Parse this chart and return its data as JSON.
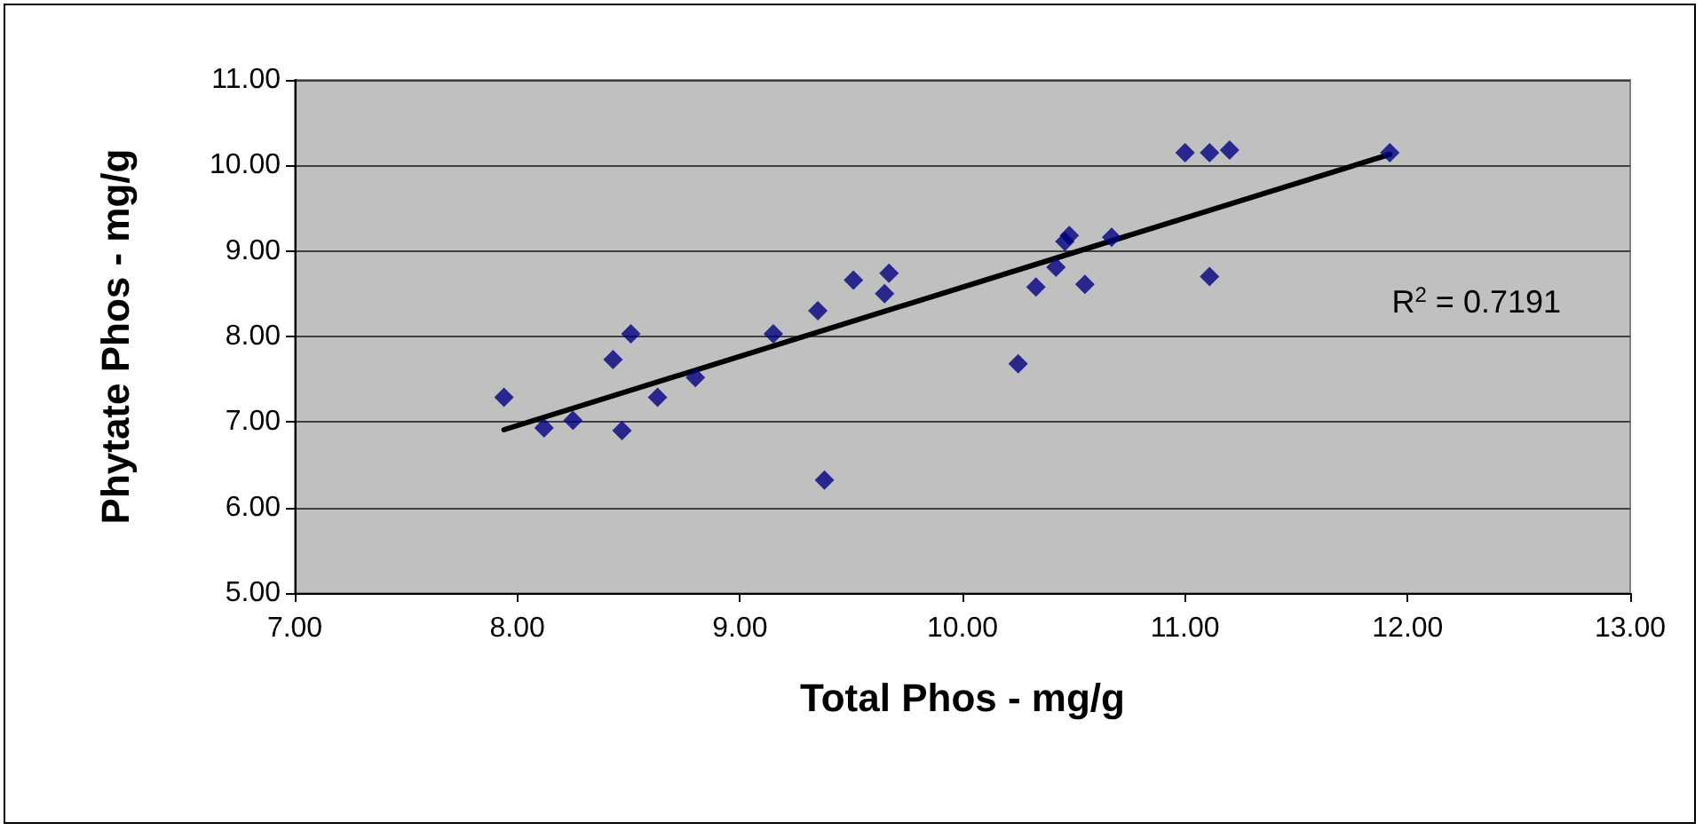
{
  "chart_data": {
    "type": "scatter",
    "xlabel": "Total Phos - mg/g",
    "ylabel": "Phytate Phos - mg/g",
    "xlim": [
      7,
      13
    ],
    "xticks": [
      {
        "value": 7,
        "label": "7.00"
      },
      {
        "value": 8,
        "label": "8.00"
      },
      {
        "value": 9,
        "label": "9.00"
      },
      {
        "value": 10,
        "label": "10.00"
      },
      {
        "value": 11,
        "label": "11.00"
      },
      {
        "value": 12,
        "label": "12.00"
      },
      {
        "value": 13,
        "label": "13.00"
      }
    ],
    "ylim": [
      5,
      11
    ],
    "yticks": [
      {
        "value": 5,
        "label": "5.00"
      },
      {
        "value": 6,
        "label": "6.00"
      },
      {
        "value": 7,
        "label": "7.00"
      },
      {
        "value": 8,
        "label": "8.00"
      },
      {
        "value": 9,
        "label": "9.00"
      },
      {
        "value": 10,
        "label": "10.00"
      },
      {
        "value": 11,
        "label": "11.00"
      }
    ],
    "grid": "y",
    "marker": "diamond",
    "annotations": [
      "R$^{2}$ = 0.7191"
    ],
    "series": [
      {
        "color": "#000080",
        "x": [
          7.94,
          8.12,
          8.25,
          8.43,
          8.47,
          8.51,
          8.63,
          8.8,
          9.15,
          9.35,
          9.38,
          9.51,
          9.65,
          9.67,
          10.25,
          10.33,
          10.42,
          10.46,
          10.48,
          10.55,
          10.67,
          11.0,
          11.11,
          11.11,
          11.2,
          11.92
        ],
        "values": [
          7.29,
          6.93,
          7.02,
          7.73,
          6.9,
          8.03,
          7.29,
          7.52,
          8.03,
          8.3,
          6.32,
          8.66,
          8.5,
          8.74,
          7.68,
          8.58,
          8.81,
          9.11,
          9.18,
          8.61,
          9.16,
          10.15,
          10.15,
          8.7,
          10.18,
          10.15
        ]
      },
      {
        "type": "line",
        "color": "#000000",
        "marker": "none",
        "line_style": "solid",
        "x": [
          7.94,
          11.92
        ],
        "values": [
          6.91,
          10.13
        ]
      }
    ]
  }
}
